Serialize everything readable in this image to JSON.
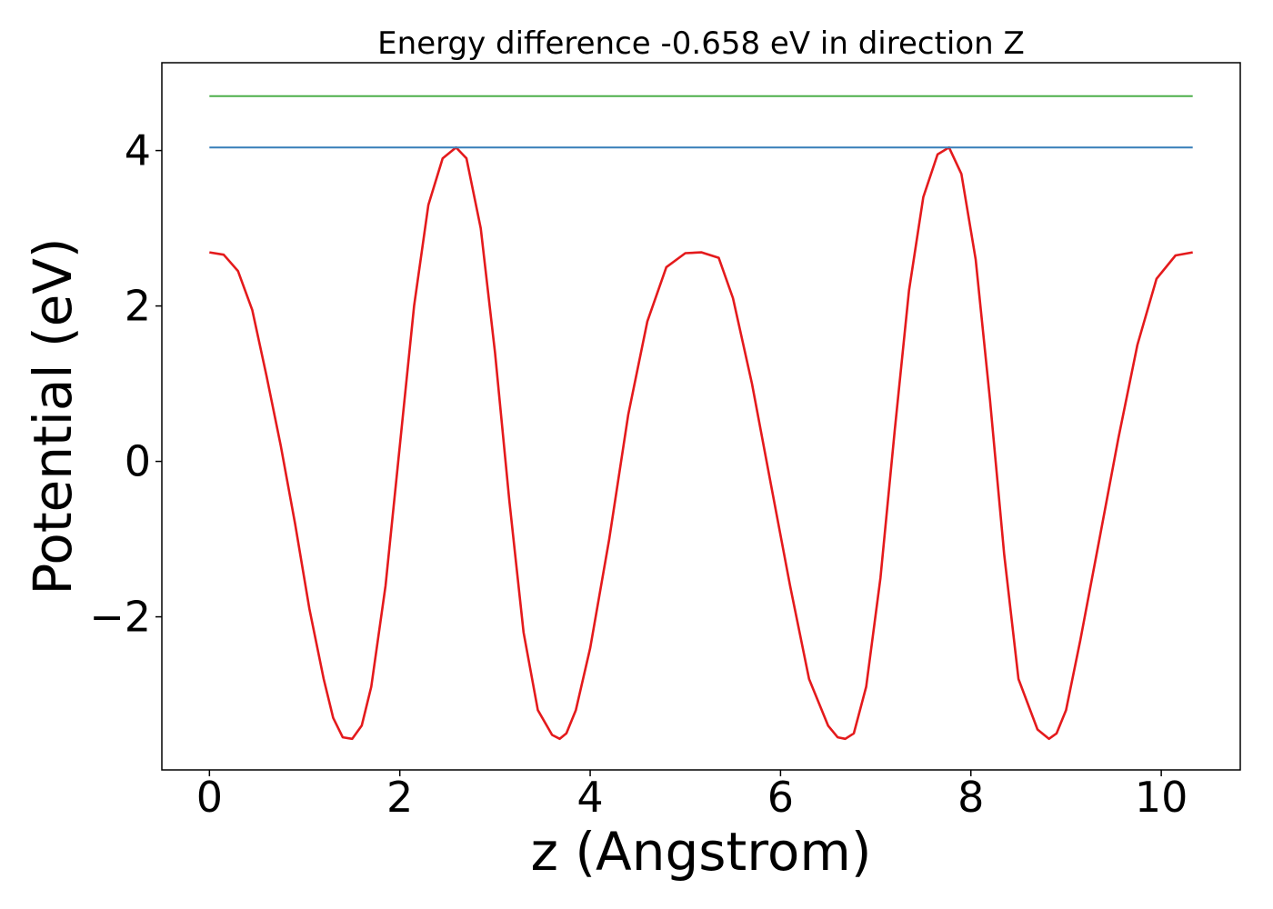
{
  "chart_data": {
    "type": "line",
    "title": "Energy difference -0.658 eV in direction Z",
    "xlabel": "z (Angstrom)",
    "ylabel": "Potential (eV)",
    "xlim": [
      -0.5,
      10.83
    ],
    "ylim": [
      -3.97,
      5.13
    ],
    "x_ticks": [
      0,
      2,
      4,
      6,
      8,
      10
    ],
    "x_tick_labels": [
      "0",
      "2",
      "4",
      "6",
      "8",
      "10"
    ],
    "y_ticks": [
      -2,
      0,
      2,
      4
    ],
    "y_tick_labels": [
      "−2",
      "0",
      "2",
      "4"
    ],
    "grid": false,
    "legend": "none",
    "series": [
      {
        "style": "curve",
        "color": "#e41a1c",
        "x": [
          0.0,
          0.15,
          0.3,
          0.45,
          0.6,
          0.75,
          0.9,
          1.05,
          1.2,
          1.3,
          1.4,
          1.5,
          1.6,
          1.7,
          1.85,
          2.0,
          2.15,
          2.3,
          2.45,
          2.59,
          2.7,
          2.85,
          3.0,
          3.15,
          3.3,
          3.45,
          3.6,
          3.68,
          3.75,
          3.85,
          4.0,
          4.2,
          4.4,
          4.6,
          4.8,
          5.0,
          5.17,
          5.35,
          5.5,
          5.7,
          5.9,
          6.1,
          6.3,
          6.5,
          6.6,
          6.68,
          6.77,
          6.9,
          7.05,
          7.2,
          7.35,
          7.5,
          7.65,
          7.77,
          7.9,
          8.05,
          8.2,
          8.35,
          8.5,
          8.7,
          8.82,
          8.9,
          9.0,
          9.15,
          9.35,
          9.55,
          9.75,
          9.95,
          10.15,
          10.33
        ],
        "y": [
          2.69,
          2.66,
          2.45,
          1.95,
          1.1,
          0.2,
          -0.8,
          -1.9,
          -2.8,
          -3.3,
          -3.55,
          -3.57,
          -3.4,
          -2.9,
          -1.6,
          0.2,
          2.0,
          3.3,
          3.9,
          4.04,
          3.9,
          3.0,
          1.4,
          -0.5,
          -2.2,
          -3.2,
          -3.52,
          -3.57,
          -3.5,
          -3.2,
          -2.4,
          -1.0,
          0.6,
          1.8,
          2.5,
          2.68,
          2.69,
          2.62,
          2.1,
          1.0,
          -0.3,
          -1.6,
          -2.8,
          -3.4,
          -3.55,
          -3.57,
          -3.5,
          -2.9,
          -1.5,
          0.4,
          2.2,
          3.4,
          3.95,
          4.04,
          3.7,
          2.6,
          0.8,
          -1.2,
          -2.8,
          -3.45,
          -3.57,
          -3.5,
          -3.2,
          -2.3,
          -1.0,
          0.3,
          1.5,
          2.35,
          2.65,
          2.69
        ]
      },
      {
        "style": "horizontal",
        "color": "#377eb8",
        "x": [
          0.0,
          10.33
        ],
        "y": [
          4.04,
          4.04
        ]
      },
      {
        "style": "horizontal",
        "color": "#4daf4a",
        "x": [
          0.0,
          10.33
        ],
        "y": [
          4.7,
          4.7
        ]
      }
    ]
  }
}
